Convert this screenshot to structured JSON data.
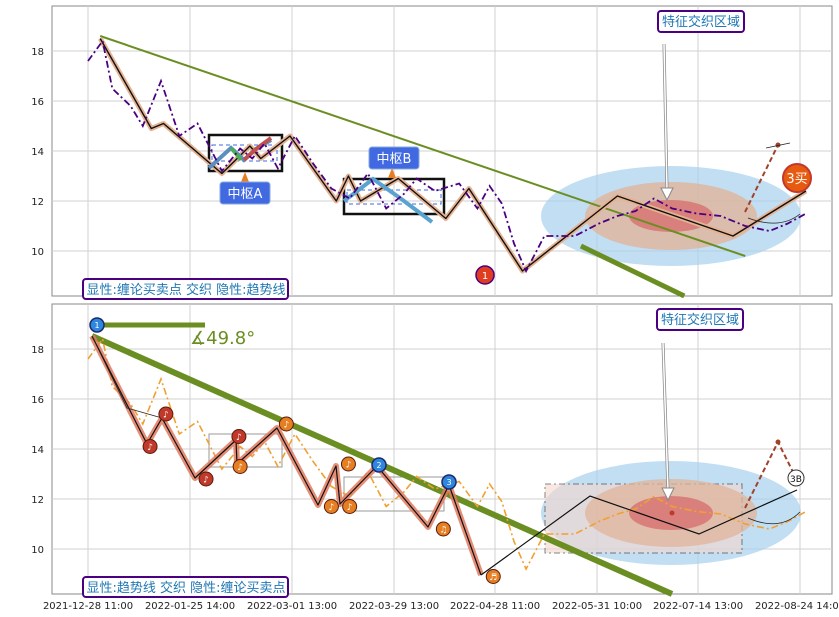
{
  "chart_data": [
    {
      "type": "line",
      "panel": "top",
      "ylim": [
        8.2,
        19.8
      ],
      "y_ticks": [
        10,
        12,
        14,
        16,
        18
      ],
      "caption": "显性:缠论买卖点 交织 隐性:趋势线",
      "labels": {
        "zone": "特征交织区域",
        "pivot_a": "中枢A",
        "pivot_b": "中枢B",
        "buy1": "1",
        "buy3": "3买"
      },
      "price_series_key_points": [
        [
          0,
          17.6
        ],
        [
          1.2,
          18.4
        ],
        [
          2,
          16.5
        ],
        [
          3.5,
          15.8
        ],
        [
          4.5,
          15
        ],
        [
          6,
          16.8
        ],
        [
          7.5,
          14.6
        ],
        [
          9,
          15.1
        ],
        [
          11,
          13.2
        ],
        [
          12.5,
          14.1
        ],
        [
          13.5,
          13.7
        ],
        [
          14.5,
          14.3
        ],
        [
          15.6,
          13.3
        ],
        [
          17,
          14.6
        ],
        [
          18.5,
          13.5
        ],
        [
          20,
          12.5
        ],
        [
          21.5,
          12.1
        ],
        [
          23,
          13.1
        ],
        [
          24.5,
          11.7
        ],
        [
          26,
          12.3
        ],
        [
          27,
          12.9
        ],
        [
          28.5,
          12.4
        ],
        [
          30.5,
          12.7
        ],
        [
          32,
          11.7
        ],
        [
          33,
          12.6
        ],
        [
          34,
          11.9
        ],
        [
          35,
          10.3
        ],
        [
          36,
          9.2
        ],
        [
          37.5,
          10.6
        ],
        [
          40,
          10.6
        ],
        [
          42,
          11.1
        ],
        [
          43.5,
          11.4
        ],
        [
          45,
          11.6
        ],
        [
          46.5,
          12.1
        ],
        [
          48,
          11.7
        ],
        [
          50,
          11.5
        ],
        [
          52,
          11.4
        ],
        [
          54,
          11.0
        ],
        [
          56,
          10.8
        ],
        [
          57.5,
          11.1
        ],
        [
          59,
          11.5
        ]
      ],
      "stroke_points": [
        [
          1,
          18.5
        ],
        [
          5.2,
          14.9
        ],
        [
          6.2,
          15.1
        ],
        [
          11,
          13.1
        ],
        [
          13.3,
          14.2
        ],
        [
          14.2,
          13.7
        ],
        [
          16.6,
          14.6
        ],
        [
          20.4,
          12.0
        ],
        [
          21.4,
          13.0
        ],
        [
          22.4,
          12.0
        ],
        [
          25.5,
          12.9
        ],
        [
          29.4,
          11.3
        ],
        [
          31.3,
          12.5
        ],
        [
          35.7,
          9.2
        ],
        [
          43.5,
          12.2
        ],
        [
          53,
          10.6
        ],
        [
          59,
          12.4
        ]
      ],
      "projection": [
        [
          59,
          12.4
        ],
        [
          56.2,
          14.3
        ]
      ],
      "trend_line": [
        [
          1,
          18.6
        ],
        [
          54,
          9.8
        ]
      ],
      "trend_thick": [
        [
          40.5,
          10.2
        ],
        [
          49,
          8.2
        ]
      ]
    },
    {
      "type": "line",
      "panel": "bottom",
      "ylim": [
        8.2,
        19.8
      ],
      "y_ticks": [
        10,
        12,
        14,
        16,
        18
      ],
      "x_ticks": [
        "2021-12-28 11:00",
        "2022-01-25 14:00",
        "2022-03-01 13:00",
        "2022-03-29 13:00",
        "2022-04-28 11:00",
        "2022-05-31 10:00",
        "2022-07-14 13:00",
        "2022-08-24 14:00"
      ],
      "angle_label": "∡49.8°",
      "caption": "显性:趋势线 交织 隐性:缠论买卖点",
      "labels": {
        "zone": "特征交织区域",
        "b1": "1",
        "b2": "2",
        "b3": "3",
        "b3b": "3B"
      },
      "markers": [
        {
          "pos": [
            5.1,
            14.1
          ],
          "glyph": "♪"
        },
        {
          "pos": [
            6.4,
            15.4
          ],
          "glyph": "♪"
        },
        {
          "pos": [
            9.7,
            12.8
          ],
          "glyph": "♪"
        },
        {
          "pos": [
            12.4,
            14.5
          ],
          "glyph": "♪"
        },
        {
          "pos": [
            12.5,
            13.3
          ],
          "glyph": "♪"
        },
        {
          "pos": [
            16.3,
            15.0
          ],
          "glyph": "♪"
        },
        {
          "pos": [
            20.0,
            11.7
          ],
          "glyph": "♪"
        },
        {
          "pos": [
            21.4,
            13.4
          ],
          "glyph": "♪"
        },
        {
          "pos": [
            21.5,
            11.7
          ],
          "glyph": "♪"
        },
        {
          "pos": [
            29.2,
            10.8
          ],
          "glyph": "♫"
        },
        {
          "pos": [
            33.3,
            8.9
          ],
          "glyph": "♬"
        }
      ]
    }
  ],
  "colors": {
    "price_top": "#4b0082",
    "price_bottom": "#f0a030",
    "trend": "#6b8e23",
    "stroke": "#111111",
    "accent_red": "#c0392b",
    "zone_blue": "#9ecae1",
    "label_border": "#4b0082",
    "label_text": "#1f77b4",
    "pivot_fill": "#4169e1"
  }
}
